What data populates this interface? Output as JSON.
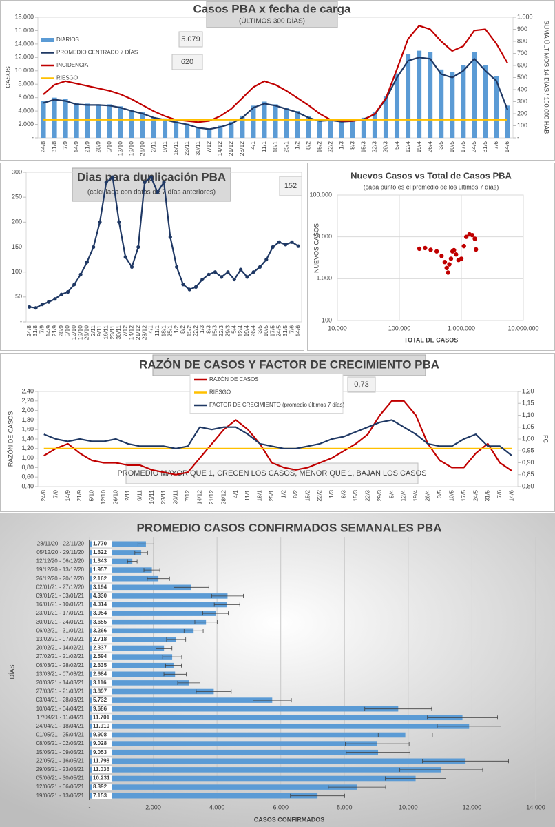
{
  "chart_data": [
    {
      "type": "combo",
      "title": "Casos  PBA x fecha de carga",
      "subtitle": "(ÚLTIMOS 300 DÍAS)",
      "ylabel": "CASOS",
      "y2label": "SUMA ÚLTIMOS 14 DÍAS / 100.000 HAB",
      "annotations": [
        "5.079",
        "620"
      ],
      "categories": [
        "24/8",
        "31/8",
        "7/9",
        "14/9",
        "21/9",
        "28/9",
        "5/10",
        "12/10",
        "19/10",
        "26/10",
        "2/11",
        "9/11",
        "16/11",
        "23/11",
        "30/11",
        "7/12",
        "14/12",
        "21/12",
        "28/12",
        "4/1",
        "11/1",
        "18/1",
        "25/1",
        "1/2",
        "8/2",
        "15/2",
        "22/2",
        "1/3",
        "8/3",
        "15/3",
        "22/3",
        "29/3",
        "5/4",
        "12/4",
        "19/4",
        "26/4",
        "3/5",
        "10/5",
        "17/5",
        "24/5",
        "31/5",
        "7/6",
        "14/6"
      ],
      "series": [
        {
          "name": "DIARIOS",
          "mark": "bar",
          "color": "#5b9bd5",
          "values": [
            5500,
            6000,
            5800,
            5200,
            5100,
            5000,
            5000,
            4700,
            4200,
            3800,
            3100,
            2900,
            2500,
            2100,
            1600,
            1400,
            1800,
            2400,
            3300,
            4800,
            5400,
            5000,
            4500,
            4000,
            3200,
            2700,
            2800,
            2600,
            2700,
            3000,
            3800,
            6200,
            9600,
            12500,
            13000,
            12800,
            10200,
            9800,
            10800,
            12800,
            10800,
            9200,
            4800
          ]
        },
        {
          "name": "PROMEDIO CENTRADO 7 DÍAS",
          "mark": "line",
          "color": "#1f3864",
          "values": [
            5200,
            5700,
            5500,
            5000,
            4900,
            4900,
            4800,
            4500,
            4000,
            3600,
            3000,
            2700,
            2300,
            2000,
            1500,
            1300,
            1600,
            2100,
            3000,
            4500,
            5100,
            4800,
            4300,
            3800,
            3000,
            2500,
            2600,
            2400,
            2500,
            2800,
            3500,
            5800,
            9000,
            11500,
            12000,
            11800,
            9500,
            9000,
            10000,
            11800,
            10000,
            8500,
            4200
          ]
        },
        {
          "name": "INCIDENCIA",
          "mark": "line",
          "axis": "y2",
          "color": "#c00000",
          "values": [
            360,
            440,
            470,
            450,
            430,
            410,
            390,
            360,
            320,
            270,
            220,
            180,
            150,
            140,
            130,
            140,
            180,
            240,
            330,
            420,
            470,
            440,
            390,
            330,
            270,
            200,
            150,
            140,
            140,
            150,
            200,
            330,
            570,
            820,
            930,
            900,
            800,
            720,
            760,
            890,
            900,
            780,
            620
          ]
        },
        {
          "name": "RIESGO",
          "mark": "line",
          "axis": "y2",
          "color": "#ffc000",
          "values": [
            150,
            150,
            150,
            150,
            150,
            150,
            150,
            150,
            150,
            150,
            150,
            150,
            150,
            150,
            150,
            150,
            150,
            150,
            150,
            150,
            150,
            150,
            150,
            150,
            150,
            150,
            150,
            150,
            150,
            150,
            150,
            150,
            150,
            150,
            150,
            150,
            150,
            150,
            150,
            150,
            150,
            150,
            150
          ]
        }
      ],
      "ylim": [
        0,
        18000
      ],
      "yticks": [
        {
          "value": 0,
          "label": "-"
        },
        {
          "value": 2000,
          "label": "2.000"
        },
        {
          "value": 4000,
          "label": "4.000"
        },
        {
          "value": 6000,
          "label": "6.000"
        },
        {
          "value": 8000,
          "label": "8.000"
        },
        {
          "value": 10000,
          "label": "10.000"
        },
        {
          "value": 12000,
          "label": "12.000"
        },
        {
          "value": 14000,
          "label": "14.000"
        },
        {
          "value": 16000,
          "label": "16.000"
        },
        {
          "value": 18000,
          "label": "18.000"
        }
      ],
      "y2lim": [
        0,
        1000
      ],
      "y2ticks": [
        {
          "value": 0,
          "label": "-"
        },
        100,
        200,
        300,
        400,
        500,
        600,
        700,
        800,
        900,
        {
          "value": 1000,
          "label": "1.000"
        }
      ],
      "grid": false
    },
    {
      "type": "line",
      "title": "Dias para duplicación PBA",
      "subtitle": "(calculada con datos de 7 días anteriores)",
      "annotations": [
        "152"
      ],
      "markers": true,
      "categories": [
        "24/8",
        "31/8",
        "7/9",
        "14/9",
        "21/9",
        "28/9",
        "5/10",
        "12/10",
        "19/10",
        "26/10",
        "2/11",
        "9/11",
        "16/11",
        "23/11",
        "30/11",
        "7/12",
        "14/12",
        "21/12",
        "28/12",
        "4/1",
        "11/1",
        "18/1",
        "25/1",
        "1/2",
        "8/2",
        "15/2",
        "22/2",
        "1/3",
        "8/3",
        "15/3",
        "22/3",
        "29/3",
        "5/4",
        "12/4",
        "19/4",
        "26/4",
        "3/5",
        "10/5",
        "17/5",
        "24/5",
        "31/5",
        "7/6",
        "14/6"
      ],
      "series": [
        {
          "color": "#1f3864",
          "values": [
            30,
            28,
            35,
            40,
            46,
            55,
            60,
            75,
            95,
            120,
            150,
            200,
            280,
            290,
            200,
            130,
            110,
            150,
            280,
            290,
            260,
            280,
            170,
            110,
            75,
            65,
            70,
            85,
            95,
            100,
            90,
            100,
            85,
            105,
            90,
            100,
            110,
            125,
            150,
            160,
            155,
            160,
            152
          ]
        }
      ],
      "ylim": [
        0,
        300
      ],
      "yticks": [
        {
          "value": 0,
          "label": "-"
        },
        50,
        100,
        150,
        200,
        250,
        300
      ],
      "grid": false
    },
    {
      "type": "scatter",
      "title": "Nuevos Casos vs Total de Casos PBA",
      "subtitle": "(cada punto es el promedio de los últimos 7 días)",
      "xlabel": "TOTAL DE CASOS",
      "ylabel": "NUEVOS CASOS",
      "log": true,
      "color": "#c00000",
      "x": [
        210000,
        260000,
        320000,
        400000,
        480000,
        540000,
        580000,
        610000,
        640000,
        680000,
        720000,
        760000,
        820000,
        900000,
        1000000,
        1100000,
        1200000,
        1350000,
        1500000,
        1650000,
        1720000
      ],
      "values": [
        5200,
        5400,
        4900,
        4500,
        3500,
        2500,
        1800,
        1400,
        2200,
        3000,
        4500,
        4800,
        3800,
        2800,
        3000,
        6000,
        10000,
        11500,
        11000,
        9000,
        5000
      ],
      "xlim": [
        10000,
        10000000
      ],
      "xticks": [
        {
          "value": 10000,
          "label": "10.000"
        },
        {
          "value": 100000,
          "label": "100.000"
        },
        {
          "value": 1000000,
          "label": "1.000.000"
        },
        {
          "value": 10000000,
          "label": "10.000.000"
        }
      ],
      "ylim": [
        100,
        100000
      ],
      "yticks": [
        100,
        {
          "value": 1000,
          "label": "1.000"
        },
        {
          "value": 10000,
          "label": "10.000"
        },
        {
          "value": 100000,
          "label": "100.000"
        }
      ],
      "grid": true
    },
    {
      "type": "line",
      "title": "RAZÓN DE CASOS Y FACTOR DE CRECIMIENTO PBA",
      "ylabel": "RAZÓN DE CASOS",
      "y2label": "FC",
      "annotations": [
        "PROMEDIO MAYOR QUE 1, CRECEN LOS CASOS, MENOR QUE 1, BAJAN LOS CASOS",
        "0,73"
      ],
      "legend": "top",
      "categories": [
        "24/8",
        "7/9",
        "14/9",
        "21/9",
        "5/10",
        "12/10",
        "26/10",
        "2/11",
        "9/11",
        "16/11",
        "23/11",
        "30/11",
        "7/12",
        "14/12",
        "21/12",
        "28/12",
        "4/1",
        "11/1",
        "18/1",
        "25/1",
        "1/2",
        "8/2",
        "15/2",
        "22/2",
        "1/3",
        "8/3",
        "15/3",
        "22/3",
        "29/3",
        "5/4",
        "12/4",
        "19/4",
        "26/4",
        "3/5",
        "10/5",
        "17/5",
        "24/5",
        "31/5",
        "7/6",
        "14/6"
      ],
      "series": [
        {
          "name": "RAZÓN DE CASOS",
          "color": "#c00000",
          "values": [
            1.05,
            1.2,
            1.3,
            1.1,
            0.95,
            0.9,
            0.9,
            0.85,
            0.85,
            0.75,
            0.7,
            0.65,
            0.7,
            1.0,
            1.3,
            1.6,
            1.8,
            1.6,
            1.3,
            0.9,
            0.8,
            0.75,
            0.8,
            0.9,
            1.0,
            1.15,
            1.3,
            1.5,
            1.9,
            2.2,
            2.2,
            1.9,
            1.3,
            0.95,
            0.8,
            0.8,
            1.1,
            1.3,
            0.9,
            0.73
          ]
        },
        {
          "name": "RIESGO",
          "color": "#ffc000",
          "values": [
            1.2,
            1.2,
            1.2,
            1.2,
            1.2,
            1.2,
            1.2,
            1.2,
            1.2,
            1.2,
            1.2,
            1.2,
            1.2,
            1.2,
            1.2,
            1.2,
            1.2,
            1.2,
            1.2,
            1.2,
            1.2,
            1.2,
            1.2,
            1.2,
            1.2,
            1.2,
            1.2,
            1.2,
            1.2,
            1.2,
            1.2,
            1.2,
            1.2,
            1.2,
            1.2,
            1.2,
            1.2,
            1.2,
            1.2,
            1.2
          ]
        },
        {
          "name": "FACTOR DE CRECIMIENTO (promedio últimos 7 días)",
          "axis": "y2",
          "color": "#1f3864",
          "values": [
            1.02,
            1.0,
            0.99,
            1.0,
            0.99,
            0.99,
            1.0,
            0.98,
            0.97,
            0.97,
            0.97,
            0.96,
            0.97,
            1.05,
            1.04,
            1.05,
            1.05,
            1.02,
            0.98,
            0.97,
            0.96,
            0.96,
            0.97,
            0.98,
            1.0,
            1.01,
            1.03,
            1.05,
            1.07,
            1.08,
            1.05,
            1.02,
            0.98,
            0.97,
            0.97,
            1.0,
            1.02,
            0.97,
            0.97,
            0.93
          ]
        }
      ],
      "ylim": [
        0.4,
        2.4
      ],
      "yticks": [
        {
          "value": 0.4,
          "label": "0,40"
        },
        {
          "value": 0.6,
          "label": "0,60"
        },
        {
          "value": 0.8,
          "label": "0,80"
        },
        {
          "value": 1.0,
          "label": "1,00"
        },
        {
          "value": 1.2,
          "label": "1,20"
        },
        {
          "value": 1.4,
          "label": "1,40"
        },
        {
          "value": 1.6,
          "label": "1,60"
        },
        {
          "value": 1.8,
          "label": "1,80"
        },
        {
          "value": 2.0,
          "label": "2,00"
        },
        {
          "value": 2.2,
          "label": "2,20"
        },
        {
          "value": 2.4,
          "label": "2,40"
        }
      ],
      "y2lim": [
        0.8,
        1.2
      ],
      "y2ticks": [
        {
          "value": 0.8,
          "label": "0,80"
        },
        {
          "value": 0.85,
          "label": "0,85"
        },
        {
          "value": 0.9,
          "label": "0,90"
        },
        {
          "value": 0.95,
          "label": "0,95"
        },
        {
          "value": 1.0,
          "label": "1,00"
        },
        {
          "value": 1.05,
          "label": "1,05"
        },
        {
          "value": 1.1,
          "label": "1,10"
        },
        {
          "value": 1.15,
          "label": "1,15"
        },
        {
          "value": 1.2,
          "label": "1,20"
        }
      ],
      "grid": false
    },
    {
      "type": "hbar",
      "title": "PROMEDIO CASOS CONFIRMADOS SEMANALES PBA",
      "xlabel": "CASOS CONFIRMADOS",
      "ylabel": "DÍAS",
      "color": "#5b9bd5",
      "categories": [
        "28/11/20 - 22/11/20",
        "05/12/20 - 29/11/20",
        "12/12/20 - 06/12/20",
        "19/12/20 - 13/12/20",
        "26/12/20 - 20/12/20",
        "02/01/21 - 27/12/20",
        "09/01/21 - 03/01/21",
        "16/01/21 - 10/01/21",
        "23/01/21 - 17/01/21",
        "30/01/21 - 24/01/21",
        "06/02/21 - 31/01/21",
        "13/02/21 - 07/02/21",
        "20/02/21 - 14/02/21",
        "27/02/21 - 21/02/21",
        "06/03/21 - 28/02/21",
        "13/03/21 - 07/03/21",
        "20/03/21 - 14/03/21",
        "27/03/21 - 21/03/21",
        "03/04/21 - 28/03/21",
        "10/04/21 - 04/04/21",
        "17/04/21 - 11/04/21",
        "24/04/21 - 18/04/21",
        "01/05/21 - 25/04/21",
        "08/05/21 - 02/05/21",
        "15/05/21 - 09/05/21",
        "22/05/21 - 16/05/21",
        "29/05/21 - 23/05/21",
        "05/06/21 - 30/05/21",
        "12/06/21 - 06/06/21",
        "19/06/21 - 13/06/21"
      ],
      "values": [
        1770,
        1622,
        1343,
        1957,
        2162,
        3194,
        4330,
        4314,
        3954,
        3655,
        3266,
        2718,
        2337,
        2594,
        2635,
        2684,
        3116,
        3897,
        5732,
        9686,
        11701,
        11910,
        9908,
        9028,
        9053,
        11798,
        11036,
        10231,
        8392,
        7153
      ],
      "value_labels": [
        "1.770",
        "1.622",
        "1.343",
        "1.957",
        "2.162",
        "3.194",
        "4.330",
        "4.314",
        "3.954",
        "3.655",
        "3.266",
        "2.718",
        "2.337",
        "2.594",
        "2.635",
        "2.684",
        "3.116",
        "3.897",
        "5.732",
        "9.686",
        "11.701",
        "11.910",
        "9.908",
        "9.028",
        "9.053",
        "11.798",
        "11.036",
        "10.231",
        "8.392",
        "7.153"
      ],
      "errors": [
        250,
        200,
        150,
        250,
        350,
        550,
        500,
        400,
        400,
        350,
        300,
        300,
        250,
        300,
        250,
        350,
        350,
        550,
        600,
        1050,
        1100,
        1000,
        850,
        1000,
        1000,
        1350,
        1300,
        950,
        900,
        850
      ],
      "xlim": [
        0,
        14000
      ],
      "xticks": [
        {
          "value": 0,
          "label": "-"
        },
        {
          "value": 2000,
          "label": "2.000"
        },
        {
          "value": 4000,
          "label": "4.000"
        },
        {
          "value": 6000,
          "label": "6.000"
        },
        {
          "value": 8000,
          "label": "8.000"
        },
        {
          "value": 10000,
          "label": "10.000"
        },
        {
          "value": 12000,
          "label": "12.000"
        },
        {
          "value": 14000,
          "label": "14.000"
        }
      ],
      "grid": true
    }
  ]
}
